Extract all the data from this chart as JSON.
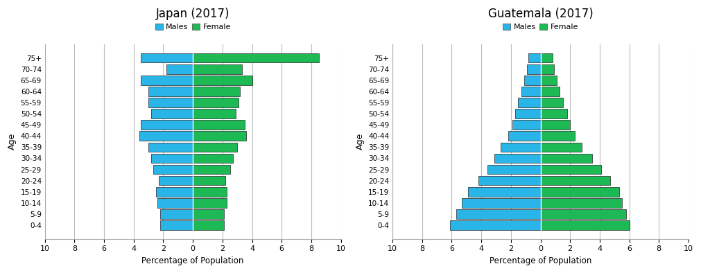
{
  "age_groups": [
    "0-4",
    "5-9",
    "10-14",
    "15-19",
    "20-24",
    "25-29",
    "30-34",
    "35-39",
    "40-44",
    "45-49",
    "50-54",
    "55-59",
    "60-64",
    "65-69",
    "70-74",
    "75+"
  ],
  "japan": {
    "title": "Japan (2017)",
    "males": [
      2.2,
      2.2,
      2.4,
      2.5,
      2.3,
      2.7,
      2.8,
      3.0,
      3.6,
      3.5,
      2.8,
      3.0,
      3.0,
      3.5,
      1.8,
      3.5
    ],
    "females": [
      2.1,
      2.1,
      2.3,
      2.3,
      2.2,
      2.5,
      2.7,
      3.0,
      3.6,
      3.5,
      2.9,
      3.1,
      3.2,
      4.0,
      3.3,
      8.5
    ]
  },
  "guatemala": {
    "title": "Guatemala (2017)",
    "males": [
      6.1,
      5.7,
      5.3,
      4.9,
      4.2,
      3.6,
      3.1,
      2.7,
      2.2,
      1.9,
      1.7,
      1.5,
      1.3,
      1.1,
      0.9,
      0.8
    ],
    "females": [
      6.0,
      5.8,
      5.5,
      5.3,
      4.7,
      4.1,
      3.5,
      2.8,
      2.3,
      2.0,
      1.8,
      1.5,
      1.3,
      1.1,
      0.9,
      0.8
    ]
  },
  "male_color": "#29B5E8",
  "female_color": "#1DB954",
  "bar_edge_color": "#222222",
  "xlim": [
    -10,
    10
  ],
  "xticks": [
    -10,
    -8,
    -6,
    -4,
    -2,
    0,
    2,
    4,
    6,
    8,
    10
  ],
  "xticklabels": [
    "10",
    "8",
    "6",
    "4",
    "2",
    "0",
    "2",
    "4",
    "6",
    "8",
    "10"
  ],
  "xlabel": "Percentage of Population",
  "ylabel": "Age",
  "background_color": "#ffffff",
  "grid_color": "#bbbbbb"
}
